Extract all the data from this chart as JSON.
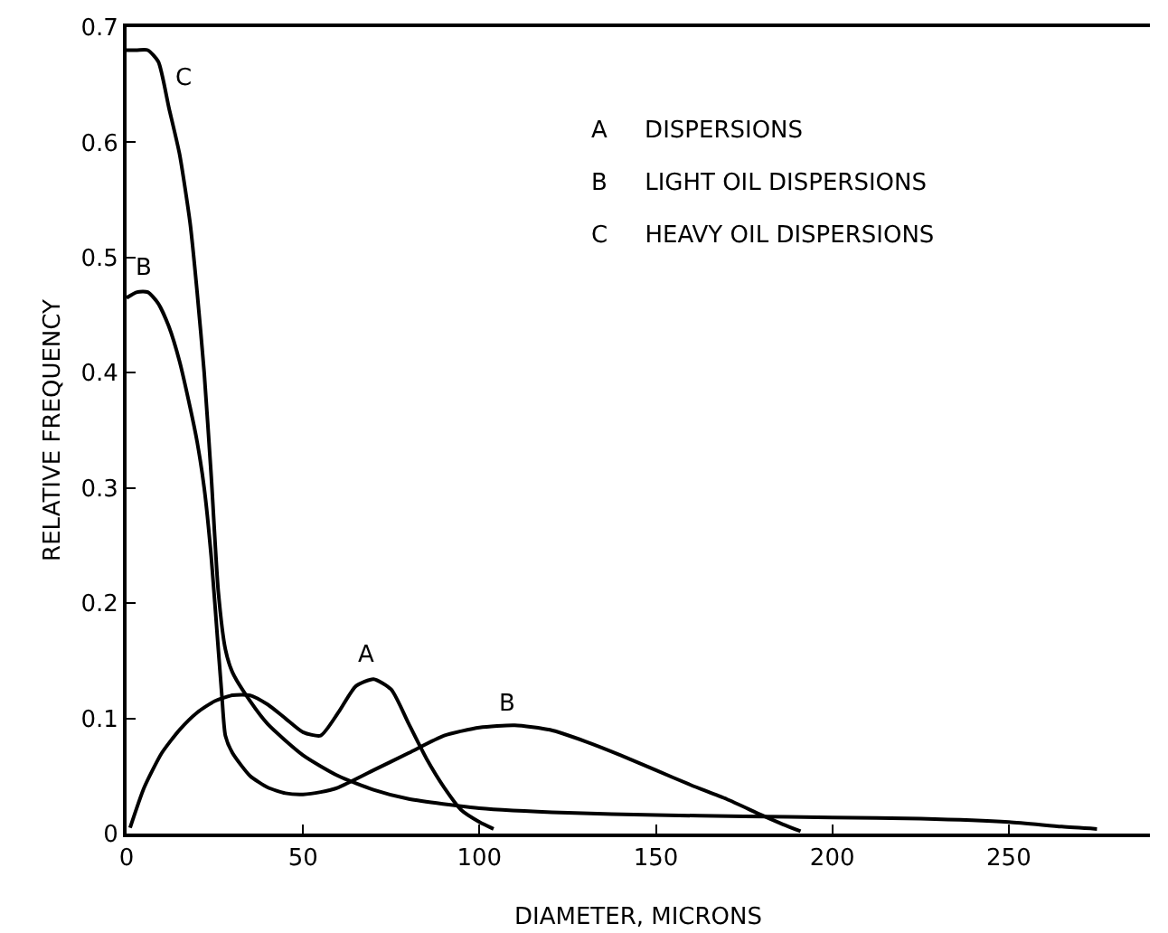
{
  "chart_data": {
    "type": "line",
    "xlabel": "DIAMETER, MICRONS",
    "ylabel": "RELATIVE FREQUENCY",
    "xlim": [
      0,
      290
    ],
    "ylim": [
      0,
      0.7
    ],
    "xticks": [
      0,
      50,
      100,
      150,
      200,
      250
    ],
    "yticks": [
      0,
      0.1,
      0.2,
      0.3,
      0.4,
      0.5,
      0.6,
      0.7
    ],
    "grid": false,
    "marker": "none",
    "line_style": "solid",
    "series": [
      {
        "color": "#000000",
        "x": [
          1,
          5,
          10,
          15,
          20,
          25,
          30,
          35,
          40,
          45,
          50,
          55,
          60,
          65,
          70,
          75,
          80,
          85,
          90,
          95,
          100,
          104
        ],
        "values": [
          0.005,
          0.04,
          0.07,
          0.09,
          0.105,
          0.115,
          0.12,
          0.12,
          0.112,
          0.1,
          0.088,
          0.085,
          0.105,
          0.128,
          0.134,
          0.125,
          0.095,
          0.065,
          0.04,
          0.02,
          0.01,
          0.004
        ]
      },
      {
        "color": "#000000",
        "x": [
          0,
          3,
          6,
          9,
          12,
          15,
          18,
          20,
          22,
          24,
          26,
          27,
          28,
          30,
          35,
          40,
          45,
          50,
          55,
          60,
          70,
          80,
          90,
          100,
          110,
          120,
          130,
          140,
          150,
          160,
          170,
          180,
          186,
          191
        ],
        "values": [
          0.465,
          0.47,
          0.47,
          0.46,
          0.44,
          0.41,
          0.37,
          0.34,
          0.3,
          0.24,
          0.16,
          0.12,
          0.085,
          0.07,
          0.05,
          0.04,
          0.035,
          0.034,
          0.036,
          0.04,
          0.055,
          0.07,
          0.085,
          0.092,
          0.094,
          0.09,
          0.08,
          0.068,
          0.055,
          0.042,
          0.03,
          0.016,
          0.008,
          0.002
        ]
      },
      {
        "color": "#000000",
        "x": [
          0,
          3,
          6,
          9,
          12,
          15,
          18,
          20,
          22,
          24,
          26,
          28,
          30,
          35,
          40,
          50,
          60,
          70,
          80,
          100,
          125,
          150,
          175,
          200,
          225,
          250,
          265,
          275
        ],
        "values": [
          0.68,
          0.68,
          0.68,
          0.67,
          0.63,
          0.59,
          0.53,
          0.47,
          0.4,
          0.31,
          0.21,
          0.16,
          0.14,
          0.115,
          0.095,
          0.068,
          0.05,
          0.038,
          0.03,
          0.022,
          0.018,
          0.016,
          0.015,
          0.014,
          0.013,
          0.01,
          0.006,
          0.004
        ]
      }
    ],
    "annotations": [
      "A",
      "B",
      "B",
      "C",
      "A     DISPERSIONS",
      "B     LIGHT OIL DISPERSIONS",
      "C     HEAVY OIL DISPERSIONS"
    ]
  }
}
